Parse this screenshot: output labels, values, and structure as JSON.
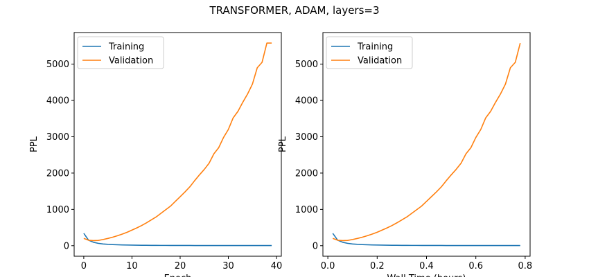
{
  "figure": {
    "title": "TRANSFORMER, ADAM, layers=3"
  },
  "chart_data": [
    {
      "type": "line",
      "title": "",
      "xlabel": "Epoch",
      "ylabel": "PPL",
      "xlim": [
        -2,
        41
      ],
      "ylim": [
        -290,
        5870
      ],
      "xticks": [
        0,
        10,
        20,
        30,
        40
      ],
      "xtick_labels": [
        "0",
        "10",
        "20",
        "30",
        "40"
      ],
      "yticks": [
        0,
        1000,
        2000,
        3000,
        4000,
        5000
      ],
      "ytick_labels": [
        "0",
        "1000",
        "2000",
        "3000",
        "4000",
        "5000"
      ],
      "grid": false,
      "legend": "top-left",
      "x": [
        0,
        1,
        2,
        3,
        4,
        5,
        6,
        7,
        8,
        9,
        10,
        11,
        12,
        13,
        14,
        15,
        16,
        17,
        18,
        19,
        20,
        21,
        22,
        23,
        24,
        25,
        26,
        27,
        28,
        29,
        30,
        31,
        32,
        33,
        34,
        35,
        36,
        37,
        38,
        39
      ],
      "series": [
        {
          "name": "Training",
          "color": "#1f77b4",
          "values": [
            340,
            150,
            95,
            65,
            48,
            37,
            30,
            25,
            21,
            18,
            16,
            14,
            12,
            11,
            10,
            9,
            8,
            8,
            7,
            7,
            6,
            6,
            6,
            5,
            5,
            5,
            5,
            5,
            4,
            4,
            4,
            4,
            4,
            4,
            4,
            4,
            4,
            4,
            4,
            4
          ]
        },
        {
          "name": "Validation",
          "color": "#ff7f0e",
          "values": [
            200,
            150,
            140,
            145,
            170,
            200,
            235,
            275,
            320,
            370,
            430,
            490,
            555,
            630,
            710,
            790,
            890,
            990,
            1090,
            1220,
            1350,
            1480,
            1620,
            1790,
            1950,
            2100,
            2270,
            2530,
            2700,
            2980,
            3200,
            3520,
            3700,
            3950,
            4180,
            4450,
            4900,
            5050,
            5580,
            5580
          ]
        }
      ]
    },
    {
      "type": "line",
      "title": "",
      "xlabel": "Wall Time (hours)",
      "ylabel": "PPL",
      "xlim": [
        -0.02,
        0.82
      ],
      "ylim": [
        -290,
        5870
      ],
      "xticks": [
        0.0,
        0.2,
        0.4,
        0.6,
        0.8
      ],
      "xtick_labels": [
        "0.0",
        "0.2",
        "0.4",
        "0.6",
        "0.8"
      ],
      "yticks": [
        0,
        1000,
        2000,
        3000,
        4000,
        5000
      ],
      "ytick_labels": [
        "0",
        "1000",
        "2000",
        "3000",
        "4000",
        "5000"
      ],
      "grid": false,
      "legend": "top-left",
      "x": [
        0.02,
        0.04,
        0.06,
        0.08,
        0.1,
        0.12,
        0.14,
        0.16,
        0.18,
        0.2,
        0.22,
        0.24,
        0.26,
        0.28,
        0.3,
        0.32,
        0.34,
        0.36,
        0.38,
        0.4,
        0.42,
        0.44,
        0.46,
        0.48,
        0.5,
        0.52,
        0.54,
        0.56,
        0.58,
        0.6,
        0.62,
        0.64,
        0.66,
        0.68,
        0.7,
        0.72,
        0.74,
        0.76,
        0.78
      ],
      "series": [
        {
          "name": "Training",
          "color": "#1f77b4",
          "values": [
            340,
            150,
            95,
            65,
            48,
            37,
            30,
            25,
            21,
            18,
            16,
            14,
            12,
            11,
            10,
            9,
            8,
            8,
            7,
            7,
            6,
            6,
            6,
            5,
            5,
            5,
            5,
            5,
            4,
            4,
            4,
            4,
            4,
            4,
            4,
            4,
            4,
            4,
            4
          ]
        },
        {
          "name": "Validation",
          "color": "#ff7f0e",
          "values": [
            200,
            150,
            140,
            145,
            170,
            200,
            235,
            275,
            320,
            370,
            430,
            490,
            555,
            630,
            710,
            790,
            890,
            990,
            1090,
            1220,
            1350,
            1480,
            1620,
            1790,
            1950,
            2100,
            2270,
            2530,
            2700,
            2980,
            3200,
            3520,
            3700,
            3950,
            4180,
            4450,
            4900,
            5050,
            5580
          ]
        }
      ]
    }
  ]
}
